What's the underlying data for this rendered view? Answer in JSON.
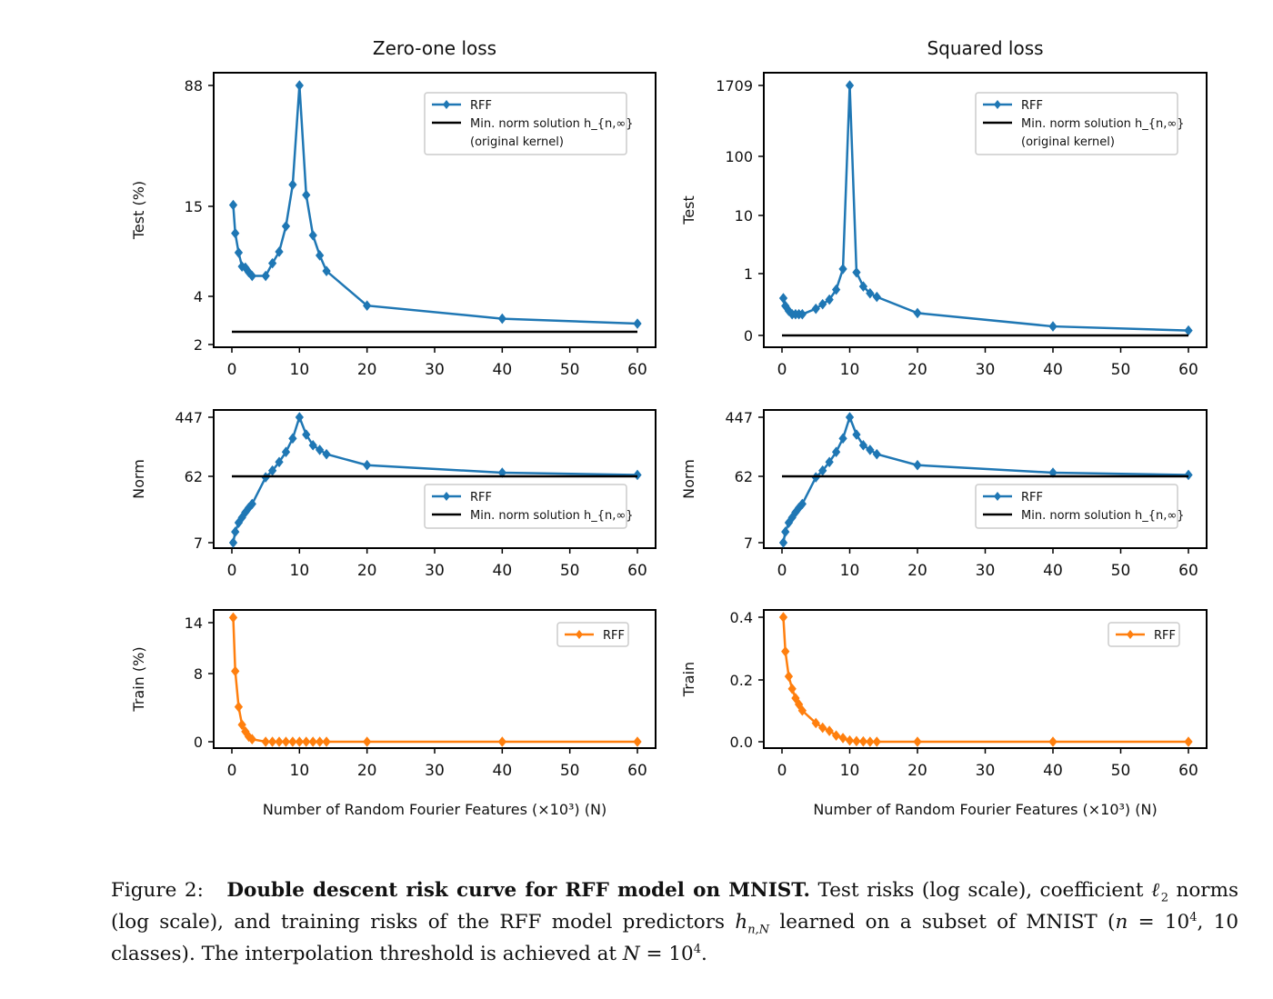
{
  "chart_data": [
    {
      "type": "line",
      "title": "Zero-one loss",
      "ylabel": "Test (%)",
      "yscale": "log",
      "xticks": [
        "0",
        "10",
        "20",
        "30",
        "40",
        "50",
        "60"
      ],
      "yticks": [
        "2",
        "4",
        "15",
        "88"
      ],
      "ylim": [
        2,
        88
      ],
      "xlim": [
        0,
        60
      ],
      "series": [
        {
          "name": "RFF",
          "color": "#1f77b4",
          "marker": "diamond",
          "x": [
            0.2,
            0.5,
            1,
            1.5,
            2,
            2.5,
            3,
            5,
            6,
            7,
            8,
            9,
            10,
            11,
            12,
            13,
            14,
            20,
            40,
            60
          ],
          "y": [
            15.3,
            10.1,
            7.6,
            6.2,
            6.1,
            5.7,
            5.4,
            5.4,
            6.5,
            7.7,
            11.2,
            20.6,
            88,
            17.7,
            9.8,
            7.3,
            5.8,
            3.5,
            2.9,
            2.7
          ]
        },
        {
          "name": "Min. norm solution h_{n,∞} (original kernel)",
          "color": "#000000",
          "type": "hline",
          "y": 2.4
        }
      ],
      "legend": {
        "position": "top-right",
        "entries": [
          "RFF",
          "Min. norm solution h_{n,∞}",
          "(original kernel)"
        ]
      }
    },
    {
      "type": "line",
      "title": "Squared loss",
      "ylabel": "Test",
      "yscale": "log",
      "xticks": [
        "0",
        "10",
        "20",
        "30",
        "40",
        "50",
        "60"
      ],
      "yticks": [
        "0",
        "1",
        "10",
        "100",
        "1709"
      ],
      "xlim": [
        0,
        60
      ],
      "series": [
        {
          "name": "RFF",
          "color": "#1f77b4",
          "marker": "diamond",
          "x": [
            0.2,
            0.5,
            1,
            1.5,
            2,
            2.5,
            3,
            5,
            6,
            7,
            8,
            9,
            10,
            11,
            12,
            13,
            14,
            20,
            40,
            60
          ],
          "y": [
            0.4,
            0.3,
            0.25,
            0.22,
            0.22,
            0.22,
            0.22,
            0.27,
            0.32,
            0.38,
            0.55,
            1.2,
            1709,
            1.05,
            0.62,
            0.48,
            0.42,
            0.23,
            0.14,
            0.12
          ]
        },
        {
          "name": "Min. norm solution h_{n,∞} (original kernel)",
          "color": "#000000",
          "type": "hline",
          "y": 0.1
        }
      ],
      "legend": {
        "position": "top-right",
        "entries": [
          "RFF",
          "Min. norm solution h_{n,∞}",
          "(original kernel)"
        ]
      }
    },
    {
      "type": "line",
      "ylabel": "Norm",
      "yscale": "log",
      "xticks": [
        "0",
        "10",
        "20",
        "30",
        "40",
        "50",
        "60"
      ],
      "yticks": [
        "7",
        "62",
        "447"
      ],
      "xlim": [
        0,
        60
      ],
      "series": [
        {
          "name": "RFF",
          "color": "#1f77b4",
          "marker": "diamond",
          "x": [
            0.2,
            0.5,
            1,
            1.5,
            2,
            2.5,
            3,
            5,
            6,
            7,
            8,
            9,
            10,
            11,
            12,
            13,
            14,
            20,
            40,
            60
          ],
          "y": [
            7,
            10,
            13.5,
            16,
            19,
            22,
            25,
            60,
            75,
            100,
            140,
            220,
            447,
            250,
            175,
            150,
            130,
            90,
            70,
            65
          ]
        },
        {
          "name": "Min. norm solution h_{n,∞}",
          "color": "#000000",
          "type": "hline",
          "y": 62
        }
      ],
      "legend": {
        "position": "bottom-right",
        "entries": [
          "RFF",
          "Min. norm solution h_{n,∞}"
        ]
      }
    },
    {
      "type": "line",
      "ylabel": "Norm",
      "yscale": "log",
      "xticks": [
        "0",
        "10",
        "20",
        "30",
        "40",
        "50",
        "60"
      ],
      "yticks": [
        "7",
        "62",
        "447"
      ],
      "xlim": [
        0,
        60
      ],
      "series": [
        {
          "name": "RFF",
          "color": "#1f77b4",
          "marker": "diamond",
          "x": [
            0.2,
            0.5,
            1,
            1.5,
            2,
            2.5,
            3,
            5,
            6,
            7,
            8,
            9,
            10,
            11,
            12,
            13,
            14,
            20,
            40,
            60
          ],
          "y": [
            7,
            10,
            13.5,
            16,
            19,
            22,
            25,
            60,
            75,
            100,
            140,
            220,
            447,
            250,
            175,
            150,
            130,
            90,
            70,
            65
          ]
        },
        {
          "name": "Min. norm solution h_{n,∞}",
          "color": "#000000",
          "type": "hline",
          "y": 62
        }
      ],
      "legend": {
        "position": "bottom-right",
        "entries": [
          "RFF",
          "Min. norm solution h_{n,∞}"
        ]
      }
    },
    {
      "type": "line",
      "ylabel": "Train (%)",
      "xlabel": "Number of Random Fourier Features (×10³) (N)",
      "xticks": [
        "0",
        "10",
        "20",
        "30",
        "40",
        "50",
        "60"
      ],
      "yticks": [
        "0",
        "8",
        "14"
      ],
      "ylim": [
        0,
        15
      ],
      "xlim": [
        0,
        60
      ],
      "series": [
        {
          "name": "RFF",
          "color": "#ff7f0e",
          "marker": "diamond",
          "x": [
            0.2,
            0.5,
            1,
            1.5,
            2,
            2.5,
            3,
            5,
            6,
            7,
            8,
            9,
            10,
            11,
            12,
            13,
            14,
            20,
            40,
            60
          ],
          "y": [
            14.6,
            8.3,
            4.1,
            2.0,
            1.2,
            0.6,
            0.3,
            0,
            0,
            0,
            0,
            0,
            0,
            0,
            0,
            0,
            0,
            0,
            0,
            0
          ]
        }
      ],
      "legend": {
        "position": "top-right",
        "entries": [
          "RFF"
        ]
      }
    },
    {
      "type": "line",
      "ylabel": "Train",
      "xlabel": "Number of Random Fourier Features (×10³) (N)",
      "xticks": [
        "0",
        "10",
        "20",
        "30",
        "40",
        "50",
        "60"
      ],
      "yticks": [
        "0.0",
        "0.2",
        "0.4"
      ],
      "ylim": [
        0,
        0.4
      ],
      "xlim": [
        0,
        60
      ],
      "series": [
        {
          "name": "RFF",
          "color": "#ff7f0e",
          "marker": "diamond",
          "x": [
            0.2,
            0.5,
            1,
            1.5,
            2,
            2.5,
            3,
            5,
            6,
            7,
            8,
            9,
            10,
            11,
            12,
            13,
            14,
            20,
            40,
            60
          ],
          "y": [
            0.4,
            0.29,
            0.21,
            0.17,
            0.14,
            0.12,
            0.1,
            0.06,
            0.045,
            0.035,
            0.02,
            0.012,
            0.004,
            0.002,
            0.001,
            0,
            0,
            0,
            0,
            0
          ]
        }
      ],
      "legend": {
        "position": "top-right",
        "entries": [
          "RFF"
        ]
      }
    }
  ],
  "caption": {
    "label": "Figure 2:",
    "bold": "Double descent risk curve for RFF model on MNIST.",
    "text1": "Test risks (log scale), coefficient",
    "l2": "ℓ",
    "l2sub": "2",
    "text2": "norms (log scale), and training risks of the RFF model predictors",
    "h": "h",
    "hsub": "n,N",
    "text3": "learned on a subset of MNIST (",
    "n": "n",
    "eq": " = 10",
    "sup4": "4",
    "text4": ", 10 classes). The interpolation threshold is achieved at",
    "N": "N",
    "eq2": " = 10",
    "sup4b": "4",
    "end": "."
  }
}
